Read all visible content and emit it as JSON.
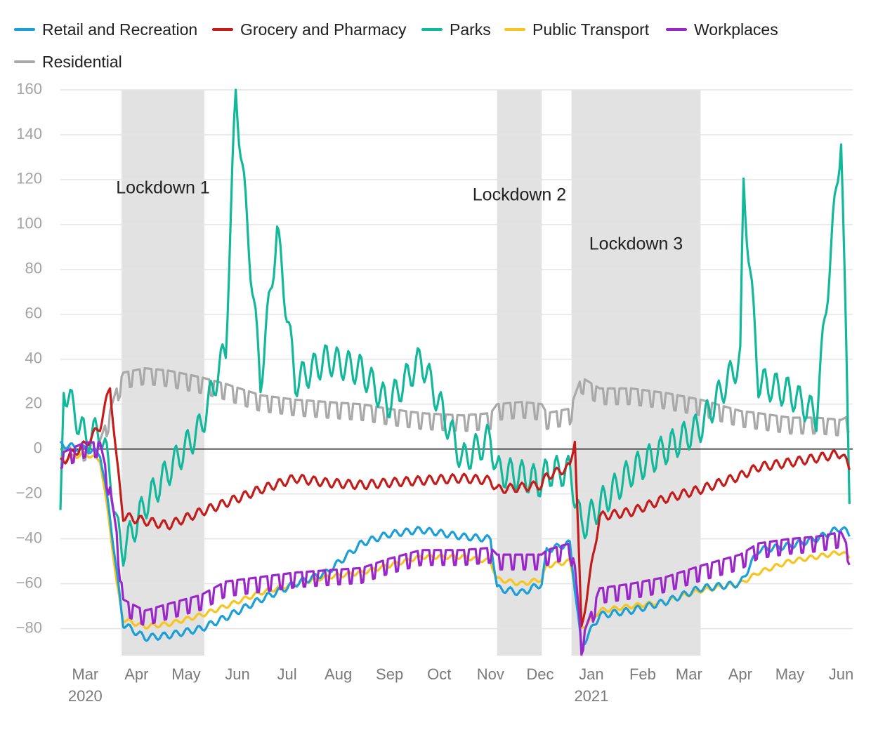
{
  "chart_data": {
    "type": "line",
    "title": "",
    "xlabel": "",
    "ylabel": "",
    "x_range": [
      "2020-02-15",
      "2021-06-08"
    ],
    "ylim": [
      -92,
      160
    ],
    "y_ticks": [
      160,
      140,
      120,
      100,
      80,
      60,
      40,
      20,
      0,
      -20,
      -40,
      -60,
      -80
    ],
    "x_ticks": [
      {
        "label": "Mar",
        "year": "2020",
        "date": "2020-03-01"
      },
      {
        "label": "Apr",
        "year": "",
        "date": "2020-04-01"
      },
      {
        "label": "May",
        "year": "",
        "date": "2020-05-01"
      },
      {
        "label": "Jun",
        "year": "",
        "date": "2020-06-01"
      },
      {
        "label": "Jul",
        "year": "",
        "date": "2020-07-01"
      },
      {
        "label": "Aug",
        "year": "",
        "date": "2020-08-01"
      },
      {
        "label": "Sep",
        "year": "",
        "date": "2020-09-01"
      },
      {
        "label": "Oct",
        "year": "",
        "date": "2020-10-01"
      },
      {
        "label": "Nov",
        "year": "",
        "date": "2020-11-01"
      },
      {
        "label": "Dec",
        "year": "",
        "date": "2020-12-01"
      },
      {
        "label": "Jan",
        "year": "2021",
        "date": "2021-01-01"
      },
      {
        "label": "Feb",
        "year": "",
        "date": "2021-02-01"
      },
      {
        "label": "Mar",
        "year": "",
        "date": "2021-03-01"
      },
      {
        "label": "Apr",
        "year": "",
        "date": "2021-04-01"
      },
      {
        "label": "May",
        "year": "",
        "date": "2021-05-01"
      },
      {
        "label": "Jun",
        "year": "",
        "date": "2021-06-01"
      }
    ],
    "grid": true,
    "zero_line": true,
    "legend_position": "top",
    "shaded_periods": [
      {
        "label": "Lockdown 1",
        "start": "2020-03-23",
        "end": "2020-05-12"
      },
      {
        "label": "Lockdown 2",
        "start": "2020-11-05",
        "end": "2020-12-02"
      },
      {
        "label": "Lockdown 3",
        "start": "2020-12-20",
        "end": "2021-03-08"
      }
    ],
    "series": [
      {
        "name": "Retail and Recreation",
        "color": "#1a9fd8",
        "points": [
          [
            "2020-02-15",
            2
          ],
          [
            "2020-03-01",
            0
          ],
          [
            "2020-03-10",
            -2
          ],
          [
            "2020-03-16",
            -30
          ],
          [
            "2020-03-20",
            -55
          ],
          [
            "2020-03-24",
            -78
          ],
          [
            "2020-04-06",
            -84
          ],
          [
            "2020-04-20",
            -83
          ],
          [
            "2020-05-10",
            -80
          ],
          [
            "2020-05-25",
            -75
          ],
          [
            "2020-06-15",
            -67
          ],
          [
            "2020-07-06",
            -60
          ],
          [
            "2020-07-25",
            -55
          ],
          [
            "2020-08-15",
            -42
          ],
          [
            "2020-08-31",
            -38
          ],
          [
            "2020-09-20",
            -36
          ],
          [
            "2020-10-15",
            -39
          ],
          [
            "2020-11-01",
            -40
          ],
          [
            "2020-11-05",
            -62
          ],
          [
            "2020-11-20",
            -64
          ],
          [
            "2020-12-02",
            -60
          ],
          [
            "2020-12-05",
            -45
          ],
          [
            "2020-12-19",
            -42
          ],
          [
            "2020-12-22",
            -62
          ],
          [
            "2020-12-26",
            -88
          ],
          [
            "2021-01-06",
            -74
          ],
          [
            "2021-01-25",
            -72
          ],
          [
            "2021-02-15",
            -68
          ],
          [
            "2021-03-08",
            -62
          ],
          [
            "2021-04-01",
            -60
          ],
          [
            "2021-04-12",
            -45
          ],
          [
            "2021-05-01",
            -43
          ],
          [
            "2021-05-17",
            -40
          ],
          [
            "2021-06-01",
            -35
          ],
          [
            "2021-06-06",
            -38
          ]
        ]
      },
      {
        "name": "Grocery and Pharmacy",
        "color": "#c41b1b",
        "points": [
          [
            "2020-02-15",
            -6
          ],
          [
            "2020-03-01",
            2
          ],
          [
            "2020-03-10",
            10
          ],
          [
            "2020-03-16",
            28
          ],
          [
            "2020-03-20",
            -5
          ],
          [
            "2020-03-24",
            -30
          ],
          [
            "2020-04-06",
            -32
          ],
          [
            "2020-04-20",
            -34
          ],
          [
            "2020-05-10",
            -28
          ],
          [
            "2020-05-25",
            -24
          ],
          [
            "2020-06-15",
            -18
          ],
          [
            "2020-07-06",
            -13
          ],
          [
            "2020-07-25",
            -15
          ],
          [
            "2020-08-15",
            -16
          ],
          [
            "2020-08-31",
            -15
          ],
          [
            "2020-09-20",
            -14
          ],
          [
            "2020-10-15",
            -13
          ],
          [
            "2020-11-01",
            -14
          ],
          [
            "2020-11-05",
            -18
          ],
          [
            "2020-11-20",
            -17
          ],
          [
            "2020-12-02",
            -16
          ],
          [
            "2020-12-05",
            -12
          ],
          [
            "2020-12-19",
            -8
          ],
          [
            "2020-12-22",
            5
          ],
          [
            "2020-12-26",
            -80
          ],
          [
            "2021-01-06",
            -30
          ],
          [
            "2021-01-25",
            -28
          ],
          [
            "2021-02-15",
            -22
          ],
          [
            "2021-03-08",
            -18
          ],
          [
            "2021-04-01",
            -12
          ],
          [
            "2021-04-12",
            -8
          ],
          [
            "2021-05-01",
            -6
          ],
          [
            "2021-05-17",
            -4
          ],
          [
            "2021-06-01",
            -2
          ],
          [
            "2021-06-06",
            -8
          ]
        ]
      },
      {
        "name": "Parks",
        "color": "#12b89a",
        "points": [
          [
            "2020-02-15",
            -34
          ],
          [
            "2020-02-17",
            28
          ],
          [
            "2020-03-01",
            5
          ],
          [
            "2020-03-10",
            8
          ],
          [
            "2020-03-16",
            -10
          ],
          [
            "2020-03-20",
            -35
          ],
          [
            "2020-03-24",
            -45
          ],
          [
            "2020-04-06",
            -25
          ],
          [
            "2020-04-20",
            -10
          ],
          [
            "2020-05-10",
            10
          ],
          [
            "2020-05-25",
            45
          ],
          [
            "2020-05-31",
            160
          ],
          [
            "2020-06-15",
            30
          ],
          [
            "2020-06-25",
            97
          ],
          [
            "2020-07-06",
            30
          ],
          [
            "2020-07-25",
            40
          ],
          [
            "2020-08-15",
            35
          ],
          [
            "2020-08-31",
            20
          ],
          [
            "2020-09-20",
            40
          ],
          [
            "2020-10-15",
            -5
          ],
          [
            "2020-11-01",
            5
          ],
          [
            "2020-11-05",
            -10
          ],
          [
            "2020-11-20",
            -12
          ],
          [
            "2020-12-02",
            -15
          ],
          [
            "2020-12-05",
            -10
          ],
          [
            "2020-12-19",
            -10
          ],
          [
            "2020-12-22",
            -20
          ],
          [
            "2020-12-26",
            -35
          ],
          [
            "2021-01-06",
            -25
          ],
          [
            "2021-01-25",
            -10
          ],
          [
            "2021-02-15",
            0
          ],
          [
            "2021-03-08",
            10
          ],
          [
            "2021-04-01",
            40
          ],
          [
            "2021-04-03",
            118
          ],
          [
            "2021-04-12",
            30
          ],
          [
            "2021-05-01",
            25
          ],
          [
            "2021-05-17",
            15
          ],
          [
            "2021-06-01",
            140
          ],
          [
            "2021-06-06",
            -20
          ]
        ]
      },
      {
        "name": "Public Transport",
        "color": "#f7c51e",
        "points": [
          [
            "2020-02-15",
            -5
          ],
          [
            "2020-03-01",
            -2
          ],
          [
            "2020-03-10",
            -5
          ],
          [
            "2020-03-16",
            -35
          ],
          [
            "2020-03-20",
            -60
          ],
          [
            "2020-03-24",
            -76
          ],
          [
            "2020-04-06",
            -79
          ],
          [
            "2020-04-20",
            -78
          ],
          [
            "2020-05-10",
            -74
          ],
          [
            "2020-05-25",
            -70
          ],
          [
            "2020-06-15",
            -64
          ],
          [
            "2020-07-06",
            -60
          ],
          [
            "2020-07-25",
            -57
          ],
          [
            "2020-08-15",
            -55
          ],
          [
            "2020-08-31",
            -52
          ],
          [
            "2020-09-20",
            -48
          ],
          [
            "2020-10-15",
            -48
          ],
          [
            "2020-11-01",
            -50
          ],
          [
            "2020-11-05",
            -58
          ],
          [
            "2020-11-20",
            -60
          ],
          [
            "2020-12-02",
            -58
          ],
          [
            "2020-12-05",
            -52
          ],
          [
            "2020-12-19",
            -50
          ],
          [
            "2020-12-22",
            -60
          ],
          [
            "2020-12-26",
            -80
          ],
          [
            "2021-01-06",
            -72
          ],
          [
            "2021-01-25",
            -70
          ],
          [
            "2021-02-15",
            -68
          ],
          [
            "2021-03-08",
            -63
          ],
          [
            "2021-04-01",
            -60
          ],
          [
            "2021-04-12",
            -55
          ],
          [
            "2021-05-01",
            -50
          ],
          [
            "2021-05-17",
            -48
          ],
          [
            "2021-06-01",
            -46
          ],
          [
            "2021-06-06",
            -48
          ]
        ]
      },
      {
        "name": "Workplaces",
        "color": "#9b27c9",
        "points": [
          [
            "2020-02-15",
            -5
          ],
          [
            "2020-03-01",
            0
          ],
          [
            "2020-03-10",
            0
          ],
          [
            "2020-03-16",
            -20
          ],
          [
            "2020-03-20",
            -40
          ],
          [
            "2020-03-24",
            -70
          ],
          [
            "2020-04-06",
            -75
          ],
          [
            "2020-04-20",
            -72
          ],
          [
            "2020-05-10",
            -68
          ],
          [
            "2020-05-25",
            -62
          ],
          [
            "2020-06-15",
            -60
          ],
          [
            "2020-07-06",
            -58
          ],
          [
            "2020-07-25",
            -57
          ],
          [
            "2020-08-15",
            -56
          ],
          [
            "2020-08-31",
            -52
          ],
          [
            "2020-09-20",
            -48
          ],
          [
            "2020-10-15",
            -48
          ],
          [
            "2020-11-01",
            -47
          ],
          [
            "2020-11-05",
            -50
          ],
          [
            "2020-11-20",
            -50
          ],
          [
            "2020-12-02",
            -50
          ],
          [
            "2020-12-05",
            -48
          ],
          [
            "2020-12-19",
            -45
          ],
          [
            "2020-12-22",
            -55
          ],
          [
            "2020-12-26",
            -88
          ],
          [
            "2021-01-06",
            -65
          ],
          [
            "2021-01-25",
            -63
          ],
          [
            "2021-02-15",
            -60
          ],
          [
            "2021-03-08",
            -55
          ],
          [
            "2021-04-01",
            -50
          ],
          [
            "2021-04-12",
            -45
          ],
          [
            "2021-05-01",
            -43
          ],
          [
            "2021-05-17",
            -42
          ],
          [
            "2021-06-01",
            -40
          ],
          [
            "2021-06-06",
            -48
          ]
        ]
      },
      {
        "name": "Residential",
        "color": "#a9a9a9",
        "points": [
          [
            "2020-02-15",
            -2
          ],
          [
            "2020-03-01",
            0
          ],
          [
            "2020-03-10",
            2
          ],
          [
            "2020-03-16",
            15
          ],
          [
            "2020-03-20",
            25
          ],
          [
            "2020-03-24",
            32
          ],
          [
            "2020-04-06",
            34
          ],
          [
            "2020-04-20",
            33
          ],
          [
            "2020-05-10",
            30
          ],
          [
            "2020-05-25",
            27
          ],
          [
            "2020-06-15",
            22
          ],
          [
            "2020-07-06",
            20
          ],
          [
            "2020-07-25",
            19
          ],
          [
            "2020-08-15",
            18
          ],
          [
            "2020-08-31",
            16
          ],
          [
            "2020-09-20",
            14
          ],
          [
            "2020-10-15",
            13
          ],
          [
            "2020-11-01",
            14
          ],
          [
            "2020-11-05",
            18
          ],
          [
            "2020-11-20",
            19
          ],
          [
            "2020-12-02",
            18
          ],
          [
            "2020-12-05",
            14
          ],
          [
            "2020-12-19",
            16
          ],
          [
            "2020-12-22",
            22
          ],
          [
            "2020-12-26",
            30
          ],
          [
            "2021-01-06",
            25
          ],
          [
            "2021-01-25",
            25
          ],
          [
            "2021-02-15",
            23
          ],
          [
            "2021-03-08",
            20
          ],
          [
            "2021-04-01",
            15
          ],
          [
            "2021-04-12",
            14
          ],
          [
            "2021-05-01",
            12
          ],
          [
            "2021-05-17",
            12
          ],
          [
            "2021-06-01",
            11
          ],
          [
            "2021-06-06",
            13
          ]
        ]
      }
    ]
  }
}
